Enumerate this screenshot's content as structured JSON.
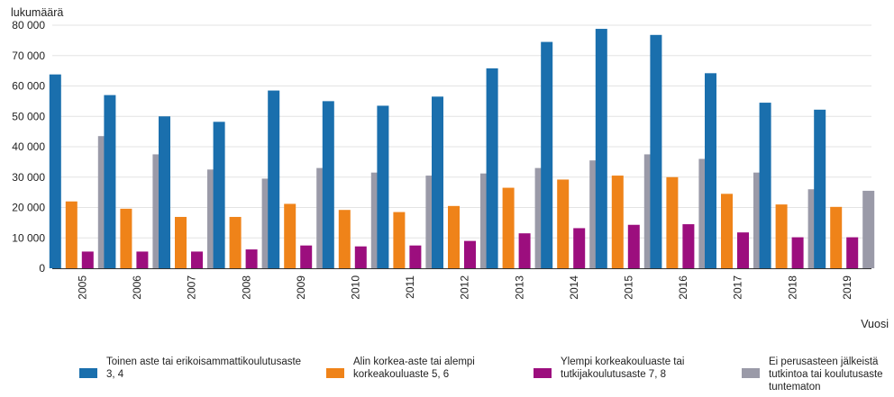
{
  "chart_data": {
    "type": "bar",
    "ylabel": "lukumäärä",
    "xlabel": "Vuosi",
    "ylim": [
      0,
      80000
    ],
    "yticks": [
      0,
      10000,
      20000,
      30000,
      40000,
      50000,
      60000,
      70000,
      80000
    ],
    "ytick_labels": [
      "0",
      "10 000",
      "20 000",
      "30 000",
      "40 000",
      "50 000",
      "60 000",
      "70 000",
      "80 000"
    ],
    "grid": true,
    "legend_position": "bottom",
    "categories": [
      "2005",
      "2006",
      "2007",
      "2008",
      "2009",
      "2010",
      "2011",
      "2012",
      "2013",
      "2014",
      "2015",
      "2016",
      "2017",
      "2018",
      "2019"
    ],
    "series": [
      {
        "name": "Toinen aste tai erikoisammattikoulutusaste\n3, 4",
        "color": "#1a6fad",
        "values": [
          63800,
          57000,
          50000,
          48200,
          58500,
          55000,
          53500,
          56500,
          65800,
          74500,
          78800,
          76800,
          64200,
          54500,
          52200
        ]
      },
      {
        "name": "Alin korkea-aste tai alempi\nkorkeakouluaste 5, 6",
        "color": "#ef8319",
        "values": [
          22000,
          19600,
          16900,
          16900,
          21200,
          19200,
          18500,
          20500,
          26500,
          29200,
          30500,
          30000,
          24500,
          21000,
          20200
        ]
      },
      {
        "name": "Ylempi korkeakouluaste tai\ntutkijakoulutusaste 7, 8",
        "color": "#9c0e7e",
        "values": [
          5500,
          5500,
          5500,
          6200,
          7500,
          7200,
          7500,
          9000,
          11500,
          13200,
          14300,
          14500,
          11800,
          10200,
          10200
        ]
      },
      {
        "name": "Ei perusasteen jälkeistä\ntutkintoa tai koulutusaste\ntuntematon",
        "color": "#9a9aa8",
        "values": [
          43500,
          37500,
          32500,
          29500,
          33000,
          31500,
          30500,
          31200,
          33000,
          35500,
          37500,
          36000,
          31500,
          26000,
          25500
        ]
      }
    ]
  }
}
